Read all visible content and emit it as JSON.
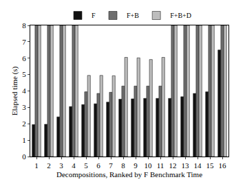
{
  "chart_data": {
    "type": "bar",
    "x_label": "Decompositions, Ranked by F Benchmark Time",
    "y_label": "Elapsed time (s)",
    "categories": [
      "1",
      "2",
      "3",
      "4",
      "5",
      "6",
      "7",
      "8",
      "9",
      "10",
      "11",
      "12",
      "13",
      "14",
      "15",
      "16"
    ],
    "series": [
      {
        "name": "F",
        "color": "#111111",
        "values": [
          1.95,
          1.97,
          2.42,
          3.05,
          3.17,
          3.22,
          3.32,
          3.5,
          3.52,
          3.55,
          3.55,
          3.55,
          3.65,
          3.85,
          3.95,
          6.5
        ]
      },
      {
        "name": "F+B",
        "color": "#6e6e6e",
        "values": [
          8,
          8,
          8,
          8,
          3.95,
          3.85,
          3.92,
          4.3,
          4.3,
          4.3,
          4.3,
          8,
          8,
          8,
          8,
          8
        ]
      },
      {
        "name": "F+B+D",
        "color": "#bdbdbd",
        "values": [
          8,
          8,
          8,
          8,
          4.95,
          4.95,
          4.93,
          6.05,
          6.02,
          5.92,
          6.05,
          8,
          8,
          8,
          8,
          8
        ]
      }
    ],
    "ylim": [
      0,
      8
    ],
    "yticks": [
      0,
      1,
      2,
      3,
      4,
      5,
      6,
      7,
      8
    ],
    "grid": false,
    "legend": "top"
  }
}
